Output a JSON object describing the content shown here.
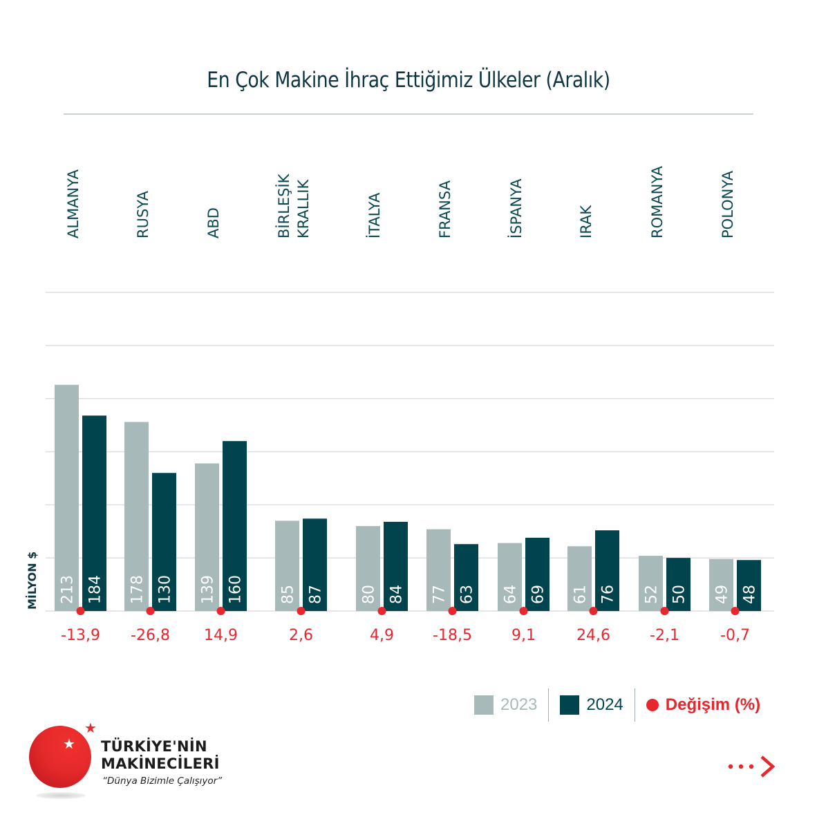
{
  "title": "En Çok Makine İhraç Ettiğimiz Ülkeler (Aralık)",
  "legend": {
    "items": [
      {
        "label": "2023",
        "color": "#a8b9b9",
        "shape": "square"
      },
      {
        "label": "2024",
        "color": "#02444d",
        "shape": "square"
      },
      {
        "label": "Değişim (%)",
        "color": "#e8262d",
        "shape": "circle"
      }
    ]
  },
  "brand": {
    "name_line1": "TÜRKİYE'NİN",
    "name_line2": "MAKİNECİLERİ",
    "slogan": "“Dünya Bizimle Çalışıyor”",
    "star_icon": "★",
    "next_icon": "dots-chevron-right-icon"
  },
  "chart_data": {
    "type": "bar",
    "title": "En Çok Makine İhraç Ettiğimiz Ülkeler (Aralık)",
    "xlabel": "",
    "ylabel": "MİLYON $",
    "ylim": [
      0,
      300
    ],
    "grid": true,
    "gridlines": [
      50,
      100,
      150,
      200,
      250,
      300
    ],
    "category_labels_position": "top",
    "categories": [
      "ALMANYA",
      "RUSYA",
      "ABD",
      "BİRLEŞİK KRALLIK",
      "İTALYA",
      "FRANSA",
      "İSPANYA",
      "IRAK",
      "ROMANYA",
      "POLONYA"
    ],
    "category_label_lines": [
      [
        "ALMANYA"
      ],
      [
        "RUSYA"
      ],
      [
        "ABD"
      ],
      [
        "BİRLEŞİK",
        "KRALLIK"
      ],
      [
        "İTALYA"
      ],
      [
        "FRANSA"
      ],
      [
        "İSPANYA"
      ],
      [
        "IRAK"
      ],
      [
        "ROMANYA"
      ],
      [
        "POLONYA"
      ]
    ],
    "series": [
      {
        "name": "2023",
        "color": "#a8b9b9",
        "label_color": "#ffffff",
        "values": [
          213,
          178,
          139,
          85,
          80,
          77,
          64,
          61,
          52,
          49
        ]
      },
      {
        "name": "2024",
        "color": "#02444d",
        "label_color": "#ffffff",
        "values": [
          184,
          130,
          160,
          87,
          84,
          63,
          69,
          76,
          50,
          48
        ]
      }
    ],
    "change_pct": {
      "name": "Değişim (%)",
      "color": "#e8262d",
      "values": [
        -13.9,
        -26.8,
        14.9,
        2.6,
        4.9,
        -18.5,
        9.1,
        24.6,
        -2.1,
        -0.7
      ],
      "labels": [
        "-13,9",
        "-26,8",
        "14,9",
        "2,6",
        "4,9",
        "-18,5",
        "9,1",
        "24,6",
        "-2,1",
        "-0,7"
      ]
    },
    "legend_position": "bottom-right"
  }
}
